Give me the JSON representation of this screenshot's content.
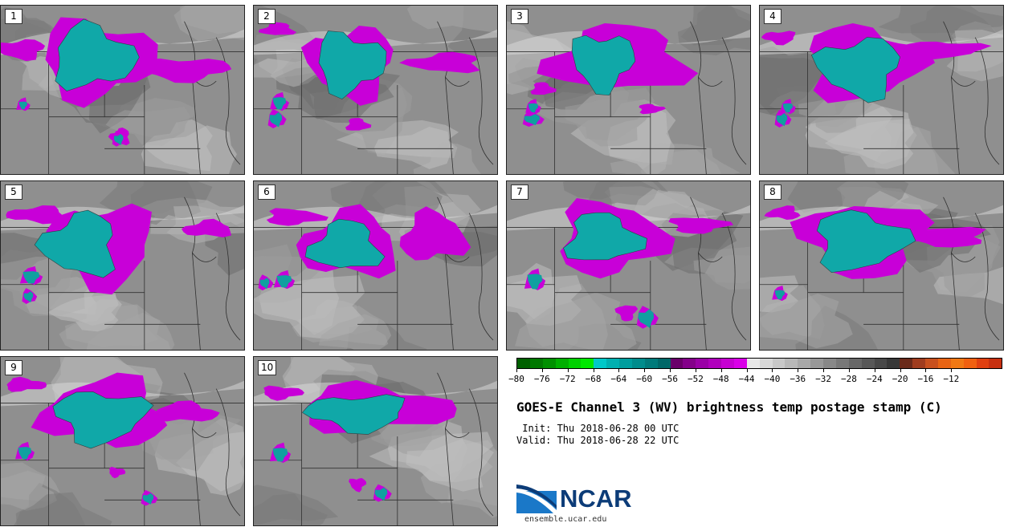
{
  "panels": [
    {
      "label": "1"
    },
    {
      "label": "2"
    },
    {
      "label": "3"
    },
    {
      "label": "4"
    },
    {
      "label": "5"
    },
    {
      "label": "6"
    },
    {
      "label": "7"
    },
    {
      "label": "8"
    },
    {
      "label": "9"
    },
    {
      "label": "10"
    }
  ],
  "colorbar": {
    "colors": [
      "#006000",
      "#007800",
      "#009000",
      "#00b000",
      "#00d000",
      "#00e800",
      "#00c8c8",
      "#00b0b0",
      "#009e9e",
      "#008c8c",
      "#007a7a",
      "#006868",
      "#6a006a",
      "#84008a",
      "#9a00a6",
      "#b000bc",
      "#c600d2",
      "#da00e8",
      "#e8e8e8",
      "#d8d8d8",
      "#c8c8c8",
      "#b8b8b8",
      "#a8a8a8",
      "#989898",
      "#888888",
      "#787878",
      "#686868",
      "#585858",
      "#484848",
      "#383838",
      "#6a2a1a",
      "#a03c1e",
      "#c8501e",
      "#e86414",
      "#f07814",
      "#f06010",
      "#e04010",
      "#c83010"
    ],
    "ticks": [
      "−80",
      "−76",
      "−72",
      "−68",
      "−64",
      "−60",
      "−56",
      "−52",
      "−48",
      "−44",
      "−40",
      "−36",
      "−32",
      "−28",
      "−24",
      "−20",
      "−16",
      "−12"
    ]
  },
  "title": "GOES-E Channel 3 (WV) brightness temp postage stamp (C)",
  "init": " Init: Thu 2018-06-28 00 UTC",
  "valid": "Valid: Thu 2018-06-28 22 UTC",
  "logo": {
    "text": "NCAR",
    "url": "ensemble.ucar.edu"
  }
}
